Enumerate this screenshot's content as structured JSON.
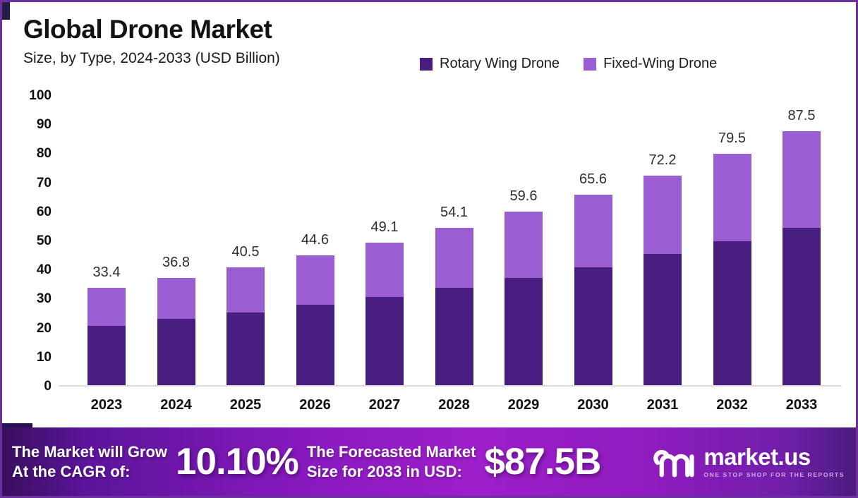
{
  "header": {
    "title": "Global Drone Market",
    "subtitle": "Size, by Type, 2024-2033 (USD Billion)"
  },
  "chart_data": {
    "type": "bar",
    "stacked": true,
    "title": "Global Drone Market Size, by Type, 2024-2033 (USD Billion)",
    "categories": [
      "2023",
      "2024",
      "2025",
      "2026",
      "2027",
      "2028",
      "2029",
      "2030",
      "2031",
      "2032",
      "2033"
    ],
    "series": [
      {
        "name": "Rotary Wing Drone",
        "color": "#481d80",
        "values": [
          20.5,
          22.7,
          25.0,
          27.6,
          30.4,
          33.6,
          37.0,
          40.6,
          45.1,
          49.5,
          54.2
        ]
      },
      {
        "name": "Fixed-Wing Drone",
        "color": "#9b5ed2",
        "values": [
          12.9,
          14.1,
          15.5,
          17.0,
          18.7,
          20.5,
          22.6,
          25.0,
          27.1,
          30.0,
          33.3
        ]
      }
    ],
    "totals": [
      33.4,
      36.8,
      40.5,
      44.6,
      49.1,
      54.1,
      59.6,
      65.6,
      72.2,
      79.5,
      87.5
    ],
    "xlabel": "",
    "ylabel": "",
    "ylim": [
      0,
      100
    ],
    "ytick_step": 10,
    "grid": false,
    "legend_position": "top-right"
  },
  "footer": {
    "cagr_label_line1": "The Market will Grow",
    "cagr_label_line2": "At the CAGR of:",
    "cagr_value": "10.10%",
    "forecast_label_line1": "The Forecasted Market",
    "forecast_label_line2": "Size for 2033 in USD:",
    "forecast_value": "$87.5B",
    "brand_name": "market.us",
    "brand_tagline": "ONE STOP SHOP FOR THE REPORTS"
  },
  "colors": {
    "rotary_bar": "#481d80",
    "fixed_bar": "#9b5ed2",
    "page_border": "#6b2f9e",
    "axis_line": "#dcdcdc",
    "banner_gradient": [
      "#38105e",
      "#5c149b",
      "#8719bd",
      "#9d1fca",
      "#911cc0",
      "#6f1ea8",
      "#4a1a7e"
    ],
    "tagline_text": "#d3a7ef"
  }
}
